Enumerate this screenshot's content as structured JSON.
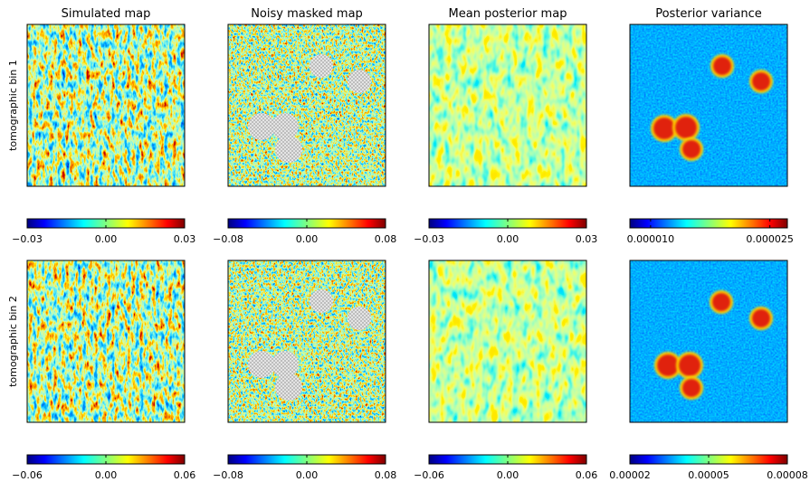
{
  "chart_data": [
    {
      "type": "heatmap",
      "title": "Simulated map",
      "ylabel": "tomographic bin 1",
      "colormap": "jet",
      "clim": [
        -0.03,
        0.03
      ],
      "cticks": [
        {
          "value": -0.03,
          "label": "−0.03"
        },
        {
          "value": 0,
          "label": "0.00"
        },
        {
          "value": 0.03,
          "label": "0.03"
        }
      ]
    },
    {
      "type": "heatmap",
      "title": "Noisy masked map",
      "colormap": "jet",
      "clim": [
        -0.08,
        0.08
      ],
      "cticks": [
        {
          "value": -0.08,
          "label": "−0.08"
        },
        {
          "value": 0,
          "label": "0.00"
        },
        {
          "value": 0.08,
          "label": "0.08"
        }
      ]
    },
    {
      "type": "heatmap",
      "title": "Mean posterior map",
      "colormap": "jet",
      "clim": [
        -0.03,
        0.03
      ],
      "cticks": [
        {
          "value": -0.03,
          "label": "−0.03"
        },
        {
          "value": 0,
          "label": "0.00"
        },
        {
          "value": 0.03,
          "label": "0.03"
        }
      ]
    },
    {
      "type": "heatmap",
      "title": "Posterior variance",
      "colormap": "jet",
      "clim": [
        7.4e-06,
        2.72e-05
      ],
      "cticks": [
        {
          "value": 1e-05,
          "label": "0.000010"
        },
        {
          "value": 2.5e-05,
          "label": "0.000025"
        }
      ]
    },
    {
      "type": "heatmap",
      "ylabel": "tomographic bin 2",
      "colormap": "jet",
      "clim": [
        -0.06,
        0.06
      ],
      "cticks": [
        {
          "value": -0.06,
          "label": "−0.06"
        },
        {
          "value": 0,
          "label": "0.00"
        },
        {
          "value": 0.06,
          "label": "0.06"
        }
      ]
    },
    {
      "type": "heatmap",
      "colormap": "jet",
      "clim": [
        -0.08,
        0.08
      ],
      "cticks": [
        {
          "value": -0.08,
          "label": "−0.08"
        },
        {
          "value": 0,
          "label": "0.00"
        },
        {
          "value": 0.08,
          "label": "0.08"
        }
      ]
    },
    {
      "type": "heatmap",
      "colormap": "jet",
      "clim": [
        -0.06,
        0.06
      ],
      "cticks": [
        {
          "value": -0.06,
          "label": "−0.06"
        },
        {
          "value": 0,
          "label": "0.00"
        },
        {
          "value": 0.06,
          "label": "0.06"
        }
      ]
    },
    {
      "type": "heatmap",
      "colormap": "jet",
      "clim": [
        2e-05,
        8e-05
      ],
      "cticks": [
        {
          "value": 2e-05,
          "label": "0.00002"
        },
        {
          "value": 5e-05,
          "label": "0.00005"
        },
        {
          "value": 8e-05,
          "label": "0.00008"
        }
      ]
    }
  ]
}
